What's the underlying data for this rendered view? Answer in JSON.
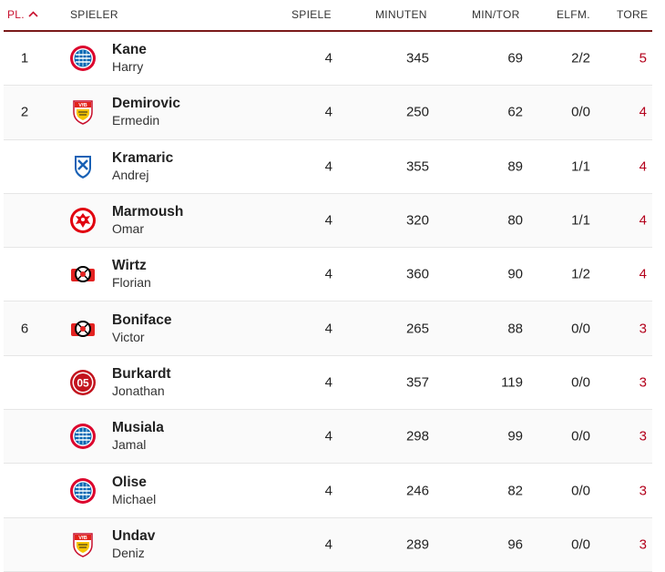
{
  "header": {
    "rank": "Pl.",
    "player": "Spieler",
    "games": "Spiele",
    "minutes": "Minuten",
    "min_per_goal": "Min/Tor",
    "penalties": "Elfm.",
    "goals": "Tore"
  },
  "rows": [
    {
      "rank": "1",
      "last": "Kane",
      "first": "Harry",
      "club": "fc-bayern",
      "games": "4",
      "minutes": "345",
      "mpg": "69",
      "pen": "2/2",
      "goals": "5"
    },
    {
      "rank": "2",
      "last": "Demirovic",
      "first": "Ermedin",
      "club": "vfb-stuttgart",
      "games": "4",
      "minutes": "250",
      "mpg": "62",
      "pen": "0/0",
      "goals": "4"
    },
    {
      "rank": "",
      "last": "Kramaric",
      "first": "Andrej",
      "club": "tsg-hoffenheim",
      "games": "4",
      "minutes": "355",
      "mpg": "89",
      "pen": "1/1",
      "goals": "4"
    },
    {
      "rank": "",
      "last": "Marmoush",
      "first": "Omar",
      "club": "eintracht-frankfurt",
      "games": "4",
      "minutes": "320",
      "mpg": "80",
      "pen": "1/1",
      "goals": "4"
    },
    {
      "rank": "",
      "last": "Wirtz",
      "first": "Florian",
      "club": "bayer-leverkusen",
      "games": "4",
      "minutes": "360",
      "mpg": "90",
      "pen": "1/2",
      "goals": "4"
    },
    {
      "rank": "6",
      "last": "Boniface",
      "first": "Victor",
      "club": "bayer-leverkusen",
      "games": "4",
      "minutes": "265",
      "mpg": "88",
      "pen": "0/0",
      "goals": "3"
    },
    {
      "rank": "",
      "last": "Burkardt",
      "first": "Jonathan",
      "club": "mainz-05",
      "games": "4",
      "minutes": "357",
      "mpg": "119",
      "pen": "0/0",
      "goals": "3"
    },
    {
      "rank": "",
      "last": "Musiala",
      "first": "Jamal",
      "club": "fc-bayern",
      "games": "4",
      "minutes": "298",
      "mpg": "99",
      "pen": "0/0",
      "goals": "3"
    },
    {
      "rank": "",
      "last": "Olise",
      "first": "Michael",
      "club": "fc-bayern",
      "games": "4",
      "minutes": "246",
      "mpg": "82",
      "pen": "0/0",
      "goals": "3"
    },
    {
      "rank": "",
      "last": "Undav",
      "first": "Deniz",
      "club": "vfb-stuttgart",
      "games": "4",
      "minutes": "289",
      "mpg": "96",
      "pen": "0/0",
      "goals": "3"
    }
  ],
  "colors": {
    "accent": "#c8102e",
    "goals": "#b3001b",
    "header_rule": "#7a1a1a"
  }
}
